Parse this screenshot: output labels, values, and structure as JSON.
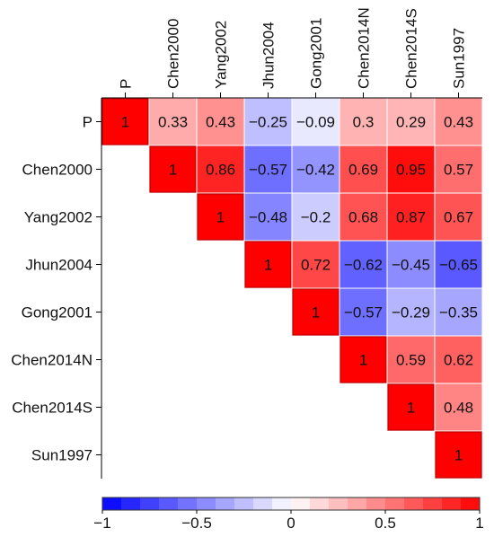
{
  "chart_data": {
    "type": "heatmap",
    "layout": "upper-triangular correlation matrix",
    "labels": [
      "P",
      "Chen2000",
      "Yang2002",
      "Jhun2004",
      "Gong2001",
      "Chen2014N",
      "Chen2014S",
      "Sun1997"
    ],
    "values": [
      [
        1,
        0.33,
        0.43,
        -0.25,
        -0.09,
        0.3,
        0.29,
        0.43
      ],
      [
        null,
        1,
        0.86,
        -0.57,
        -0.42,
        0.69,
        0.95,
        0.57
      ],
      [
        null,
        null,
        1,
        -0.48,
        -0.2,
        0.68,
        0.87,
        0.67
      ],
      [
        null,
        null,
        null,
        1,
        0.72,
        -0.62,
        -0.45,
        -0.65
      ],
      [
        null,
        null,
        null,
        null,
        1,
        -0.57,
        -0.29,
        -0.35
      ],
      [
        null,
        null,
        null,
        null,
        null,
        1,
        0.59,
        0.62
      ],
      [
        null,
        null,
        null,
        null,
        null,
        null,
        1,
        0.48
      ],
      [
        null,
        null,
        null,
        null,
        null,
        null,
        null,
        1
      ]
    ],
    "value_labels": [
      [
        "1",
        "0.33",
        "0.43",
        "−0.25",
        "−0.09",
        "0.3",
        "0.29",
        "0.43"
      ],
      [
        null,
        "1",
        "0.86",
        "−0.57",
        "−0.42",
        "0.69",
        "0.95",
        "0.57"
      ],
      [
        null,
        null,
        "1",
        "−0.48",
        "−0.2",
        "0.68",
        "0.87",
        "0.67"
      ],
      [
        null,
        null,
        null,
        "1",
        "0.72",
        "−0.62",
        "−0.45",
        "−0.65"
      ],
      [
        null,
        null,
        null,
        null,
        "1",
        "−0.57",
        "−0.29",
        "−0.35"
      ],
      [
        null,
        null,
        null,
        null,
        null,
        "1",
        "0.59",
        "0.62"
      ],
      [
        null,
        null,
        null,
        null,
        null,
        null,
        "1",
        "0.48"
      ],
      [
        null,
        null,
        null,
        null,
        null,
        null,
        null,
        "1"
      ]
    ],
    "colorbar": {
      "range": [
        -1,
        1
      ],
      "ticks": [
        -1,
        -0.5,
        0,
        0.5,
        1
      ],
      "tick_labels": [
        "−1",
        "−0.5",
        "0",
        "0.5",
        "1"
      ],
      "orientation": "horizontal",
      "position": "bottom"
    },
    "colors": {
      "negative": "#0000ff",
      "zero": "#ffffff",
      "positive": "#ff0000",
      "grid": "#ffffff",
      "text": "#111111"
    },
    "title": "",
    "xlabel": "",
    "ylabel": ""
  }
}
